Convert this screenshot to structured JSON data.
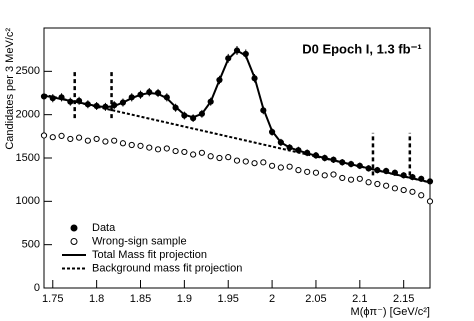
{
  "chart_data": {
    "type": "scatter",
    "title": "D0 Epoch I, 1.3 fb⁻¹",
    "x_label": "M(ϕπ⁻) [GeV/c²]",
    "y_label": "Candidates per 3 MeV/c²",
    "xlim": [
      1.74,
      2.18
    ],
    "ylim": [
      0,
      3000
    ],
    "xticks": [
      1.75,
      1.8,
      1.85,
      1.9,
      1.95,
      2,
      2.05,
      2.1,
      2.15
    ],
    "yticks": [
      0,
      500,
      1000,
      1500,
      2000,
      2500
    ],
    "legend": "bottom-left",
    "x": [
      1.74,
      1.75,
      1.76,
      1.77,
      1.78,
      1.79,
      1.8,
      1.81,
      1.82,
      1.83,
      1.84,
      1.85,
      1.86,
      1.87,
      1.88,
      1.89,
      1.9,
      1.91,
      1.92,
      1.93,
      1.94,
      1.95,
      1.96,
      1.97,
      1.98,
      1.99,
      2,
      2.01,
      2.02,
      2.03,
      2.04,
      2.05,
      2.06,
      2.07,
      2.08,
      2.09,
      2.1,
      2.11,
      2.12,
      2.13,
      2.14,
      2.15,
      2.16,
      2.17,
      2.18
    ],
    "series": [
      {
        "name": "Data",
        "color": "#000000",
        "style": "filled",
        "values": [
          2210,
          2190,
          2200,
          2150,
          2160,
          2120,
          2100,
          2090,
          2110,
          2140,
          2200,
          2230,
          2260,
          2250,
          2200,
          2080,
          1990,
          1960,
          2010,
          2150,
          2400,
          2650,
          2740,
          2700,
          2420,
          2050,
          1800,
          1680,
          1620,
          1590,
          1560,
          1530,
          1500,
          1480,
          1450,
          1430,
          1410,
          1380,
          1360,
          1350,
          1330,
          1300,
          1280,
          1260,
          1230
        ],
        "errors": [
          47,
          47,
          47,
          46,
          46,
          46,
          46,
          46,
          46,
          46,
          47,
          47,
          48,
          47,
          47,
          46,
          45,
          44,
          45,
          46,
          49,
          51,
          52,
          52,
          49,
          45,
          42,
          41,
          40,
          40,
          39,
          39,
          39,
          38,
          38,
          38,
          38,
          37,
          37,
          37,
          36,
          36,
          36,
          35,
          35
        ]
      },
      {
        "name": "Wrong-sign sample",
        "color": "#000000",
        "style": "open",
        "values": [
          1760,
          1740,
          1755,
          1720,
          1735,
          1700,
          1720,
          1690,
          1700,
          1670,
          1650,
          1640,
          1620,
          1600,
          1610,
          1580,
          1570,
          1540,
          1560,
          1520,
          1500,
          1510,
          1470,
          1460,
          1440,
          1450,
          1410,
          1390,
          1400,
          1360,
          1340,
          1330,
          1300,
          1310,
          1270,
          1250,
          1260,
          1220,
          1200,
          1180,
          1150,
          1130,
          1110,
          1070,
          1000
        ]
      },
      {
        "name": "Total Mass fit projection",
        "color": "#000000",
        "style": "line",
        "values": [
          2220,
          2200,
          2180,
          2160,
          2140,
          2120,
          2100,
          2085,
          2100,
          2140,
          2190,
          2230,
          2250,
          2240,
          2190,
          2090,
          2000,
          1970,
          2010,
          2150,
          2400,
          2640,
          2740,
          2680,
          2430,
          2070,
          1810,
          1680,
          1620,
          1585,
          1555,
          1525,
          1500,
          1475,
          1450,
          1427,
          1404,
          1381,
          1358,
          1335,
          1312,
          1289,
          1266,
          1243,
          1220
        ]
      },
      {
        "name": "Background mass fit projection",
        "color": "#000000",
        "style": "dashed",
        "x": [
          1.74,
          2.18
        ],
        "values": [
          2230,
          1218
        ]
      }
    ],
    "markers": [
      {
        "x": 1.775,
        "y": [
          1960,
          2500
        ]
      },
      {
        "x": 1.817,
        "y": [
          1960,
          2500
        ]
      },
      {
        "x": 2.115,
        "y": [
          1300,
          1790
        ]
      },
      {
        "x": 2.157,
        "y": [
          1300,
          1790
        ]
      }
    ]
  }
}
